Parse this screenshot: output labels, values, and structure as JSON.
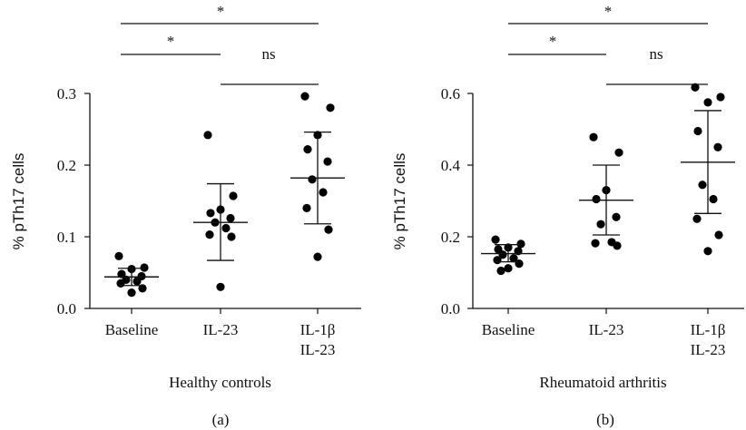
{
  "figure": {
    "colors": {
      "ink": "#111111",
      "marker": "#000000",
      "background": "#ffffff"
    }
  },
  "chart_data": [
    {
      "type": "scatter",
      "panel_label": "(a)",
      "xlabel": "Healthy controls",
      "ylabel": "% pTh17 cells",
      "ylim": [
        0,
        0.3
      ],
      "yticks": [
        "0.0",
        "0.1",
        "0.2",
        "0.3"
      ],
      "categories": [
        {
          "lines": [
            "Baseline"
          ]
        },
        {
          "lines": [
            "IL-23"
          ]
        },
        {
          "lines": [
            "IL-1β",
            "IL-23"
          ]
        }
      ],
      "groups": [
        {
          "category": "Baseline",
          "values": [
            0.073,
            0.057,
            0.055,
            0.048,
            0.045,
            0.04,
            0.038,
            0.035,
            0.028,
            0.022
          ],
          "mean": 0.044,
          "sd_low": 0.032,
          "sd_high": 0.056
        },
        {
          "category": "IL-23",
          "values": [
            0.242,
            0.157,
            0.138,
            0.133,
            0.126,
            0.12,
            0.112,
            0.103,
            0.1,
            0.03
          ],
          "mean": 0.12,
          "sd_low": 0.067,
          "sd_high": 0.174
        },
        {
          "category": "IL-1β IL-23",
          "values": [
            0.296,
            0.28,
            0.242,
            0.222,
            0.205,
            0.18,
            0.162,
            0.14,
            0.11,
            0.072
          ],
          "mean": 0.182,
          "sd_low": 0.118,
          "sd_high": 0.246
        }
      ],
      "significance": [
        {
          "from": 0,
          "to": 2,
          "label": "*",
          "level": 2
        },
        {
          "from": 0,
          "to": 1,
          "label": "*",
          "level": 1
        },
        {
          "from": 1,
          "to": 2,
          "label": "ns",
          "level": 0
        }
      ]
    },
    {
      "type": "scatter",
      "panel_label": "(b)",
      "xlabel": "Rheumatoid arthritis",
      "ylabel": "% pTh17 cells",
      "ylim": [
        0,
        0.6
      ],
      "yticks": [
        "0.0",
        "0.2",
        "0.4",
        "0.6"
      ],
      "categories": [
        {
          "lines": [
            "Baseline"
          ]
        },
        {
          "lines": [
            "IL-23"
          ]
        },
        {
          "lines": [
            "IL-1β",
            "IL-23"
          ]
        }
      ],
      "groups": [
        {
          "category": "Baseline",
          "values": [
            0.192,
            0.18,
            0.17,
            0.165,
            0.16,
            0.15,
            0.14,
            0.135,
            0.125,
            0.112,
            0.105
          ],
          "mean": 0.153,
          "sd_low": 0.13,
          "sd_high": 0.178
        },
        {
          "category": "IL-23",
          "values": [
            0.478,
            0.435,
            0.33,
            0.305,
            0.255,
            0.235,
            0.185,
            0.182,
            0.175
          ],
          "mean": 0.302,
          "sd_low": 0.205,
          "sd_high": 0.4
        },
        {
          "category": "IL-1β IL-23",
          "values": [
            0.617,
            0.59,
            0.575,
            0.495,
            0.45,
            0.345,
            0.305,
            0.25,
            0.205,
            0.16
          ],
          "mean": 0.408,
          "sd_low": 0.265,
          "sd_high": 0.552
        }
      ],
      "significance": [
        {
          "from": 0,
          "to": 2,
          "label": "*",
          "level": 2
        },
        {
          "from": 0,
          "to": 1,
          "label": "*",
          "level": 1
        },
        {
          "from": 1,
          "to": 2,
          "label": "ns",
          "level": 0
        }
      ]
    }
  ]
}
